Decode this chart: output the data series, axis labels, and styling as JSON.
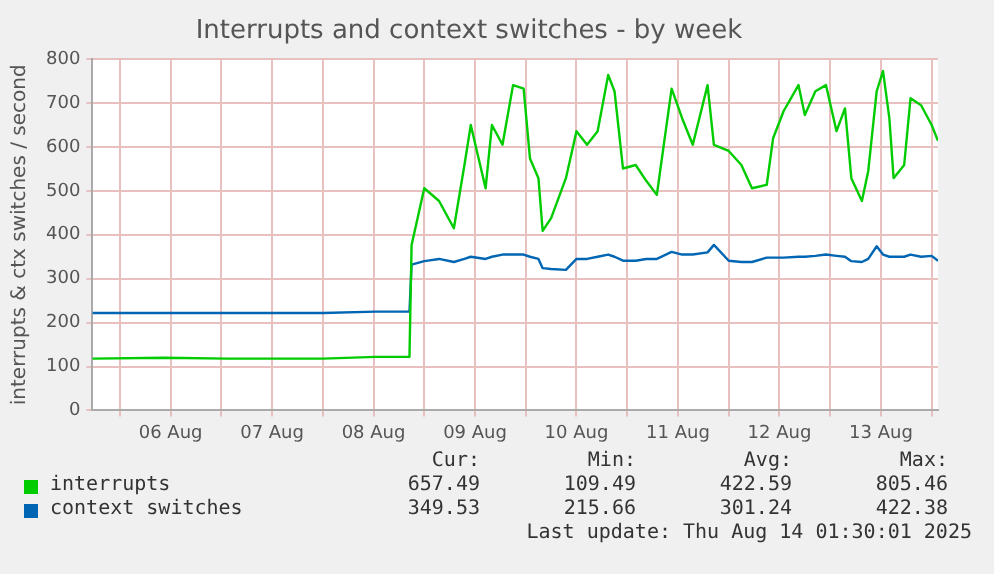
{
  "chart_data": {
    "type": "line",
    "title": "Interrupts and context switches - by week",
    "ylabel": "interrupts & ctx switches / second",
    "x": [
      "2025-08-05T17:30",
      "2025-08-06T10:30",
      "2025-08-07T01:30",
      "2025-08-08T00:00",
      "2025-08-08T12:30",
      "2025-08-08T20:30",
      "2025-08-08T21:00",
      "2025-08-09T00:00",
      "2025-08-09T03:30",
      "2025-08-09T07:00",
      "2025-08-09T09:30",
      "2025-08-09T11:00",
      "2025-08-09T14:30",
      "2025-08-09T16:00",
      "2025-08-09T18:30",
      "2025-08-09T21:00",
      "2025-08-09T23:30",
      "2025-08-10T01:00",
      "2025-08-10T03:00",
      "2025-08-10T04:00",
      "2025-08-10T06:00",
      "2025-08-10T09:30",
      "2025-08-10T12:00",
      "2025-08-10T14:30",
      "2025-08-10T17:00",
      "2025-08-10T19:30",
      "2025-08-10T21:00",
      "2025-08-10T23:00",
      "2025-08-11T02:00",
      "2025-08-11T04:30",
      "2025-08-11T07:00",
      "2025-08-11T10:30",
      "2025-08-11T13:00",
      "2025-08-11T15:30",
      "2025-08-11T19:00",
      "2025-08-11T20:30",
      "2025-08-12T00:00",
      "2025-08-12T03:00",
      "2025-08-12T05:30",
      "2025-08-12T09:00",
      "2025-08-12T10:30",
      "2025-08-12T13:00",
      "2025-08-12T16:30",
      "2025-08-12T18:00",
      "2025-08-12T20:30",
      "2025-08-12T23:00",
      "2025-08-13T01:30",
      "2025-08-13T03:30",
      "2025-08-13T05:00",
      "2025-08-13T07:30",
      "2025-08-13T09:00",
      "2025-08-13T11:00",
      "2025-08-13T12:30",
      "2025-08-13T14:00",
      "2025-08-13T15:00",
      "2025-08-13T17:30",
      "2025-08-13T19:00",
      "2025-08-13T21:30",
      "2025-08-14T00:00",
      "2025-08-14T01:30"
    ],
    "series": [
      {
        "name": "interrupts",
        "color": "#00cc00",
        "values": [
          118,
          120,
          118,
          118,
          122,
          122,
          377,
          506,
          477,
          415,
          559,
          650,
          506,
          650,
          605,
          741,
          733,
          574,
          529,
          409,
          438,
          529,
          636,
          605,
          636,
          764,
          727,
          551,
          559,
          523,
          491,
          733,
          665,
          605,
          741,
          605,
          591,
          559,
          506,
          514,
          620,
          682,
          741,
          673,
          727,
          741,
          636,
          688,
          529,
          477,
          545,
          727,
          773,
          665,
          529,
          559,
          711,
          695,
          650,
          614
        ]
      },
      {
        "name": "context switches",
        "color": "#0066b3",
        "values": [
          222,
          222,
          222,
          222,
          225,
          225,
          332,
          340,
          345,
          338,
          345,
          350,
          345,
          350,
          355,
          355,
          355,
          350,
          345,
          324,
          322,
          320,
          345,
          345,
          350,
          355,
          350,
          341,
          341,
          345,
          345,
          361,
          355,
          355,
          360,
          377,
          341,
          338,
          338,
          348,
          348,
          348,
          350,
          350,
          352,
          355,
          352,
          350,
          340,
          338,
          345,
          374,
          355,
          350,
          350,
          350,
          355,
          350,
          352,
          341
        ]
      }
    ],
    "xlim": [
      "2025-08-05T17:30",
      "2025-08-14T01:30"
    ],
    "xticks": [
      {
        "value": "2025-08-06T00:00",
        "label": null
      },
      {
        "value": "2025-08-06T12:00",
        "label": "06 Aug"
      },
      {
        "value": "2025-08-07T00:00",
        "label": null
      },
      {
        "value": "2025-08-07T12:00",
        "label": "07 Aug"
      },
      {
        "value": "2025-08-08T00:00",
        "label": null
      },
      {
        "value": "2025-08-08T12:00",
        "label": "08 Aug"
      },
      {
        "value": "2025-08-09T00:00",
        "label": null
      },
      {
        "value": "2025-08-09T12:00",
        "label": "09 Aug"
      },
      {
        "value": "2025-08-10T00:00",
        "label": null
      },
      {
        "value": "2025-08-10T12:00",
        "label": "10 Aug"
      },
      {
        "value": "2025-08-11T00:00",
        "label": null
      },
      {
        "value": "2025-08-11T12:00",
        "label": "11 Aug"
      },
      {
        "value": "2025-08-12T00:00",
        "label": null
      },
      {
        "value": "2025-08-12T12:00",
        "label": "12 Aug"
      },
      {
        "value": "2025-08-13T00:00",
        "label": null
      },
      {
        "value": "2025-08-13T12:00",
        "label": "13 Aug"
      },
      {
        "value": "2025-08-14T00:00",
        "label": null
      }
    ],
    "ylim": [
      0,
      800
    ],
    "yticks": [
      0,
      100,
      200,
      300,
      400,
      500,
      600,
      700,
      800
    ],
    "grid": true,
    "legend": "bottom",
    "marker": "none",
    "line_style": "solid",
    "annotations": [
      "Cur:",
      "Min:",
      "Avg:",
      "Max:",
      "657.49",
      "109.49",
      "422.59",
      "805.46",
      "349.53",
      "215.66",
      "301.24",
      "422.38",
      "Last update: Thu Aug 14 01:30:01 2025"
    ]
  }
}
